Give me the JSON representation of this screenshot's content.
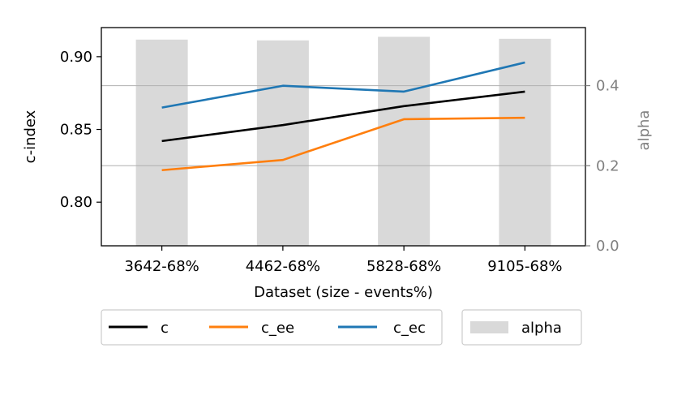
{
  "chart_data": {
    "type": "line",
    "categories": [
      "3642-68%",
      "4462-68%",
      "5828-68%",
      "9105-68%"
    ],
    "xlabel": "Dataset (size - events%)",
    "ylabel": "c-index",
    "ylim": [
      0.77,
      0.92
    ],
    "yticks": [
      0.8,
      0.85,
      0.9
    ],
    "ytick_labels": [
      "0.80",
      "0.85",
      "0.90"
    ],
    "y2label": "alpha",
    "y2lim": [
      0.0,
      0.545
    ],
    "y2ticks": [
      0.0,
      0.2,
      0.4
    ],
    "y2tick_labels": [
      "0.0",
      "0.2",
      "0.4"
    ],
    "grid": "horizontal",
    "legend_placement": "bottom-center",
    "series": [
      {
        "name": "c",
        "values": [
          0.842,
          0.853,
          0.866,
          0.876
        ],
        "color": "#000000"
      },
      {
        "name": "c_ee",
        "values": [
          0.822,
          0.829,
          0.857,
          0.858
        ],
        "color": "#ff7f0e"
      },
      {
        "name": "c_ec",
        "values": [
          0.865,
          0.88,
          0.876,
          0.896
        ],
        "color": "#1f77b4"
      }
    ],
    "bars": {
      "name": "alpha",
      "values": [
        0.515,
        0.513,
        0.522,
        0.517
      ],
      "color": "#d9d9d9",
      "axis": "right"
    }
  }
}
